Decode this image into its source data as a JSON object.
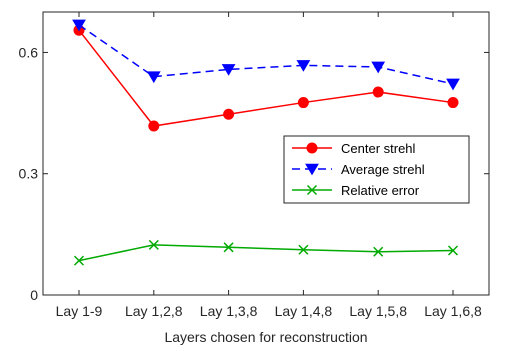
{
  "chart_data": {
    "type": "line",
    "title": "",
    "xlabel": "Layers chosen for reconstruction",
    "ylabel": "",
    "categories": [
      "Lay 1-9",
      "Lay 1,2,8",
      "Lay 1,3,8",
      "Lay 1,4,8",
      "Lay 1,5,8",
      "Lay 1,6,8"
    ],
    "ylim": [
      0,
      0.7
    ],
    "yticks": [
      0,
      0.3,
      0.6
    ],
    "ytick_labels": [
      "0",
      "0.3",
      "0.6"
    ],
    "grid": false,
    "legend_position": "right",
    "series": [
      {
        "name": "Center strehl",
        "values": [
          0.655,
          0.418,
          0.447,
          0.476,
          0.502,
          0.476
        ],
        "color": "#ff0000",
        "marker": "circle",
        "line_style": "solid"
      },
      {
        "name": "Average strehl",
        "values": [
          0.668,
          0.54,
          0.558,
          0.568,
          0.564,
          0.522
        ],
        "color": "#0000ff",
        "marker": "triangle-down",
        "line_style": "dashed"
      },
      {
        "name": "Relative error",
        "values": [
          0.085,
          0.124,
          0.118,
          0.112,
          0.107,
          0.11
        ],
        "color": "#00aa00",
        "marker": "x",
        "line_style": "solid"
      }
    ]
  }
}
